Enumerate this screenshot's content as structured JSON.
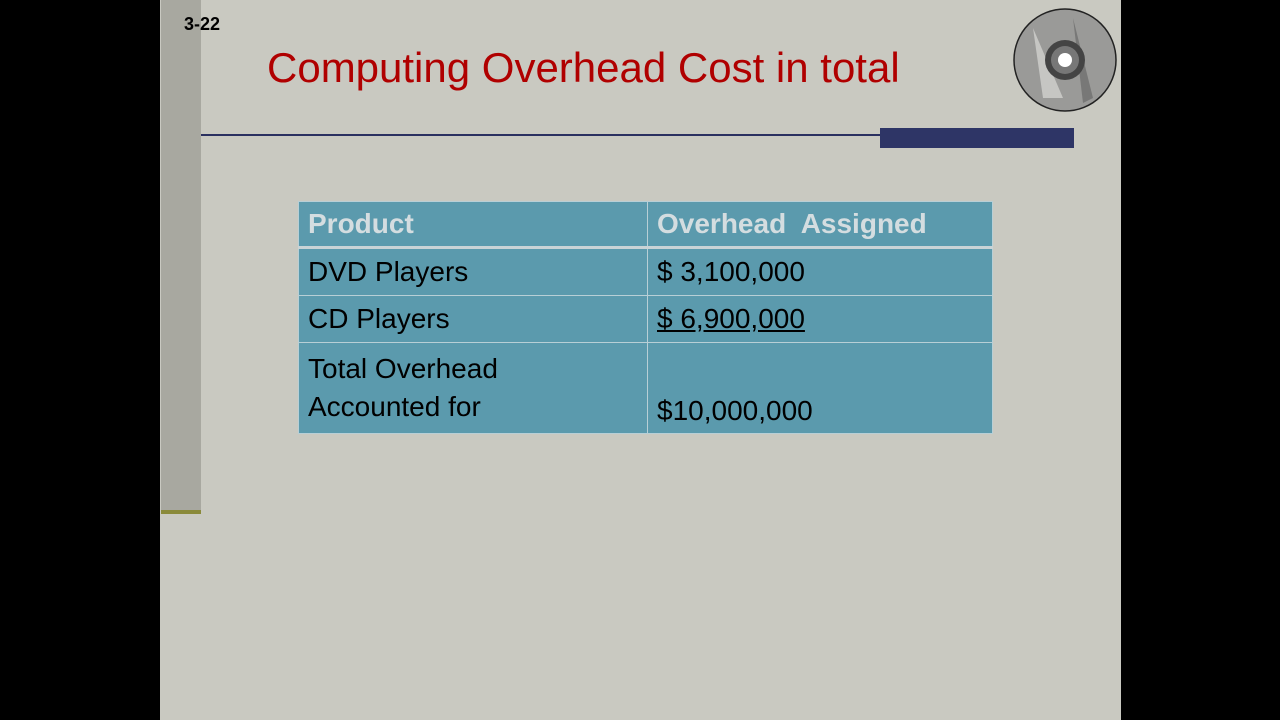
{
  "slide": {
    "number": "3-22",
    "title": "Computing Overhead Cost in total",
    "colors": {
      "title": "#b00000",
      "table": "#5b9aad",
      "accent_bar": "#2e3566"
    },
    "icon": "cd-disc-icon",
    "table": {
      "headers": [
        "Product",
        "Overhead  Assigned"
      ],
      "rows": [
        {
          "product": "DVD Players",
          "amount": "$ 3,100,000"
        },
        {
          "product": "CD Players",
          "amount": "$ 6,900,000"
        }
      ],
      "total": {
        "label_line1": "Total Overhead",
        "label_line2": "Accounted for",
        "amount": "$10,000,000"
      }
    }
  }
}
